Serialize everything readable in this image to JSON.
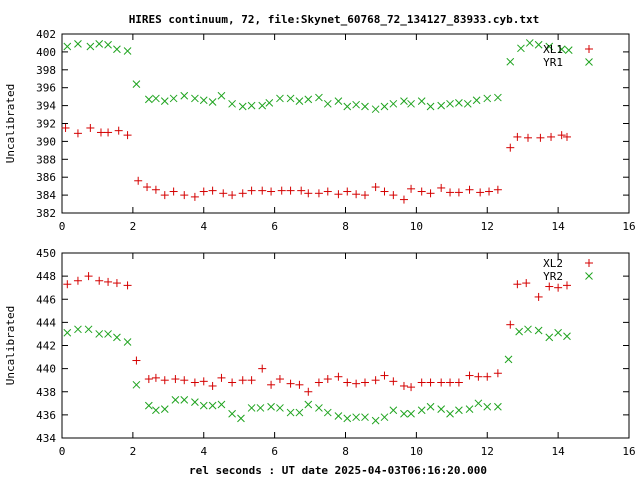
{
  "title": "HIRES continuum, 72, file:Skynet_60768_72_134127_83933.cyb.txt",
  "xlabel": "rel seconds : UT date 2025-04-03T06:16:20.000",
  "colors": {
    "red": "#d40000",
    "green": "#1fa31f"
  },
  "chart_data": [
    {
      "type": "scatter",
      "title": "HIRES continuum, 72, file:Skynet_60768_72_134127_83933.cyb.txt",
      "xlabel": "",
      "ylabel": "Uncalibrated",
      "xlim": [
        0,
        16
      ],
      "ylim": [
        382,
        402
      ],
      "xticks": [
        0,
        2,
        4,
        6,
        8,
        10,
        12,
        14,
        16
      ],
      "yticks": [
        382,
        384,
        386,
        388,
        390,
        392,
        394,
        396,
        398,
        400,
        402
      ],
      "legend_position": "top-right",
      "series": [
        {
          "name": "XL1",
          "marker": "plus",
          "color": "#d40000",
          "x": [
            0.1,
            0.45,
            0.8,
            1.1,
            1.3,
            1.6,
            1.85,
            2.15,
            2.4,
            2.65,
            2.9,
            3.15,
            3.45,
            3.75,
            4.0,
            4.25,
            4.55,
            4.8,
            5.1,
            5.35,
            5.65,
            5.9,
            6.2,
            6.45,
            6.75,
            6.95,
            7.25,
            7.5,
            7.8,
            8.05,
            8.3,
            8.55,
            8.85,
            9.1,
            9.35,
            9.65,
            9.85,
            10.15,
            10.4,
            10.7,
            10.95,
            11.2,
            11.5,
            11.8,
            12.05,
            12.3,
            12.65,
            12.85,
            13.15,
            13.5,
            13.8,
            14.1,
            14.25
          ],
          "y": [
            391.5,
            390.9,
            391.5,
            391.0,
            391.0,
            391.2,
            390.7,
            385.6,
            384.9,
            384.6,
            384.0,
            384.4,
            384.0,
            383.8,
            384.4,
            384.5,
            384.2,
            384.0,
            384.2,
            384.5,
            384.5,
            384.4,
            384.5,
            384.5,
            384.5,
            384.2,
            384.2,
            384.4,
            384.1,
            384.4,
            384.1,
            384.0,
            384.9,
            384.4,
            384.0,
            383.5,
            384.7,
            384.4,
            384.2,
            384.8,
            384.3,
            384.3,
            384.6,
            384.3,
            384.4,
            384.6,
            389.3,
            390.5,
            390.4,
            390.4,
            390.5,
            390.7,
            390.5
          ]
        },
        {
          "name": "YR1",
          "marker": "cross",
          "color": "#1fa31f",
          "x": [
            0.15,
            0.45,
            0.8,
            1.05,
            1.3,
            1.55,
            1.85,
            2.1,
            2.45,
            2.65,
            2.9,
            3.15,
            3.45,
            3.75,
            4.0,
            4.25,
            4.5,
            4.8,
            5.1,
            5.35,
            5.65,
            5.85,
            6.15,
            6.45,
            6.7,
            6.95,
            7.25,
            7.5,
            7.8,
            8.05,
            8.3,
            8.55,
            8.85,
            9.1,
            9.35,
            9.65,
            9.85,
            10.15,
            10.4,
            10.7,
            10.95,
            11.2,
            11.45,
            11.7,
            12.0,
            12.3,
            12.65,
            12.95,
            13.2,
            13.45,
            13.75,
            14.1,
            14.3
          ],
          "y": [
            400.6,
            400.9,
            400.6,
            400.9,
            400.8,
            400.3,
            400.1,
            396.4,
            394.7,
            394.8,
            394.5,
            394.8,
            395.1,
            394.8,
            394.6,
            394.4,
            395.1,
            394.2,
            393.9,
            394.0,
            394.0,
            394.3,
            394.8,
            394.8,
            394.5,
            394.7,
            394.9,
            394.2,
            394.5,
            393.9,
            394.1,
            393.9,
            393.6,
            393.9,
            394.2,
            394.5,
            394.2,
            394.5,
            393.9,
            394.0,
            394.2,
            394.3,
            394.2,
            394.6,
            394.8,
            394.9,
            398.9,
            400.4,
            401.0,
            400.8,
            400.6,
            400.3,
            400.2
          ]
        }
      ]
    },
    {
      "type": "scatter",
      "title": "",
      "xlabel": "rel seconds : UT date 2025-04-03T06:16:20.000",
      "ylabel": "Uncalibrated",
      "xlim": [
        0,
        16
      ],
      "ylim": [
        434,
        450
      ],
      "xticks": [
        0,
        2,
        4,
        6,
        8,
        10,
        12,
        14,
        16
      ],
      "yticks": [
        434,
        436,
        438,
        440,
        442,
        444,
        446,
        448,
        450
      ],
      "legend_position": "top-right",
      "series": [
        {
          "name": "XL2",
          "marker": "plus",
          "color": "#d40000",
          "x": [
            0.15,
            0.45,
            0.75,
            1.05,
            1.3,
            1.55,
            1.85,
            2.1,
            2.45,
            2.65,
            2.9,
            3.2,
            3.45,
            3.75,
            4.0,
            4.25,
            4.5,
            4.8,
            5.1,
            5.35,
            5.65,
            5.9,
            6.15,
            6.45,
            6.7,
            6.95,
            7.25,
            7.5,
            7.8,
            8.05,
            8.3,
            8.55,
            8.85,
            9.1,
            9.35,
            9.65,
            9.85,
            10.15,
            10.4,
            10.7,
            10.95,
            11.2,
            11.5,
            11.75,
            12.0,
            12.3,
            12.65,
            12.85,
            13.1,
            13.45,
            13.75,
            14.0,
            14.25
          ],
          "y": [
            447.3,
            447.6,
            448.0,
            447.6,
            447.5,
            447.4,
            447.2,
            440.7,
            439.1,
            439.2,
            439.0,
            439.1,
            439.0,
            438.8,
            438.9,
            438.5,
            439.2,
            438.8,
            439.0,
            439.0,
            440.0,
            438.6,
            439.1,
            438.7,
            438.6,
            438.0,
            438.8,
            439.1,
            439.3,
            438.8,
            438.7,
            438.8,
            439.0,
            439.4,
            438.9,
            438.5,
            438.4,
            438.8,
            438.8,
            438.8,
            438.8,
            438.8,
            439.4,
            439.3,
            439.3,
            439.6,
            443.8,
            447.3,
            447.4,
            446.2,
            447.1,
            447.0,
            447.2
          ]
        },
        {
          "name": "YR2",
          "marker": "cross",
          "color": "#1fa31f",
          "x": [
            0.15,
            0.45,
            0.75,
            1.05,
            1.3,
            1.55,
            1.85,
            2.1,
            2.45,
            2.65,
            2.9,
            3.2,
            3.45,
            3.75,
            4.0,
            4.25,
            4.5,
            4.8,
            5.05,
            5.35,
            5.6,
            5.9,
            6.15,
            6.45,
            6.7,
            6.95,
            7.25,
            7.5,
            7.8,
            8.05,
            8.3,
            8.55,
            8.85,
            9.1,
            9.35,
            9.65,
            9.85,
            10.15,
            10.4,
            10.7,
            10.95,
            11.2,
            11.5,
            11.75,
            12.0,
            12.3,
            12.6,
            12.9,
            13.15,
            13.45,
            13.75,
            14.0,
            14.25
          ],
          "y": [
            443.1,
            443.4,
            443.4,
            443.0,
            443.0,
            442.7,
            442.3,
            438.6,
            436.8,
            436.4,
            436.5,
            437.3,
            437.3,
            437.1,
            436.8,
            436.8,
            436.9,
            436.1,
            435.7,
            436.6,
            436.6,
            436.7,
            436.6,
            436.2,
            436.2,
            436.9,
            436.6,
            436.2,
            435.9,
            435.7,
            435.8,
            435.8,
            435.5,
            435.8,
            436.4,
            436.1,
            436.1,
            436.4,
            436.7,
            436.5,
            436.1,
            436.4,
            436.5,
            437.0,
            436.7,
            436.7,
            440.8,
            443.2,
            443.4,
            443.3,
            442.7,
            443.1,
            442.8
          ]
        }
      ]
    }
  ]
}
